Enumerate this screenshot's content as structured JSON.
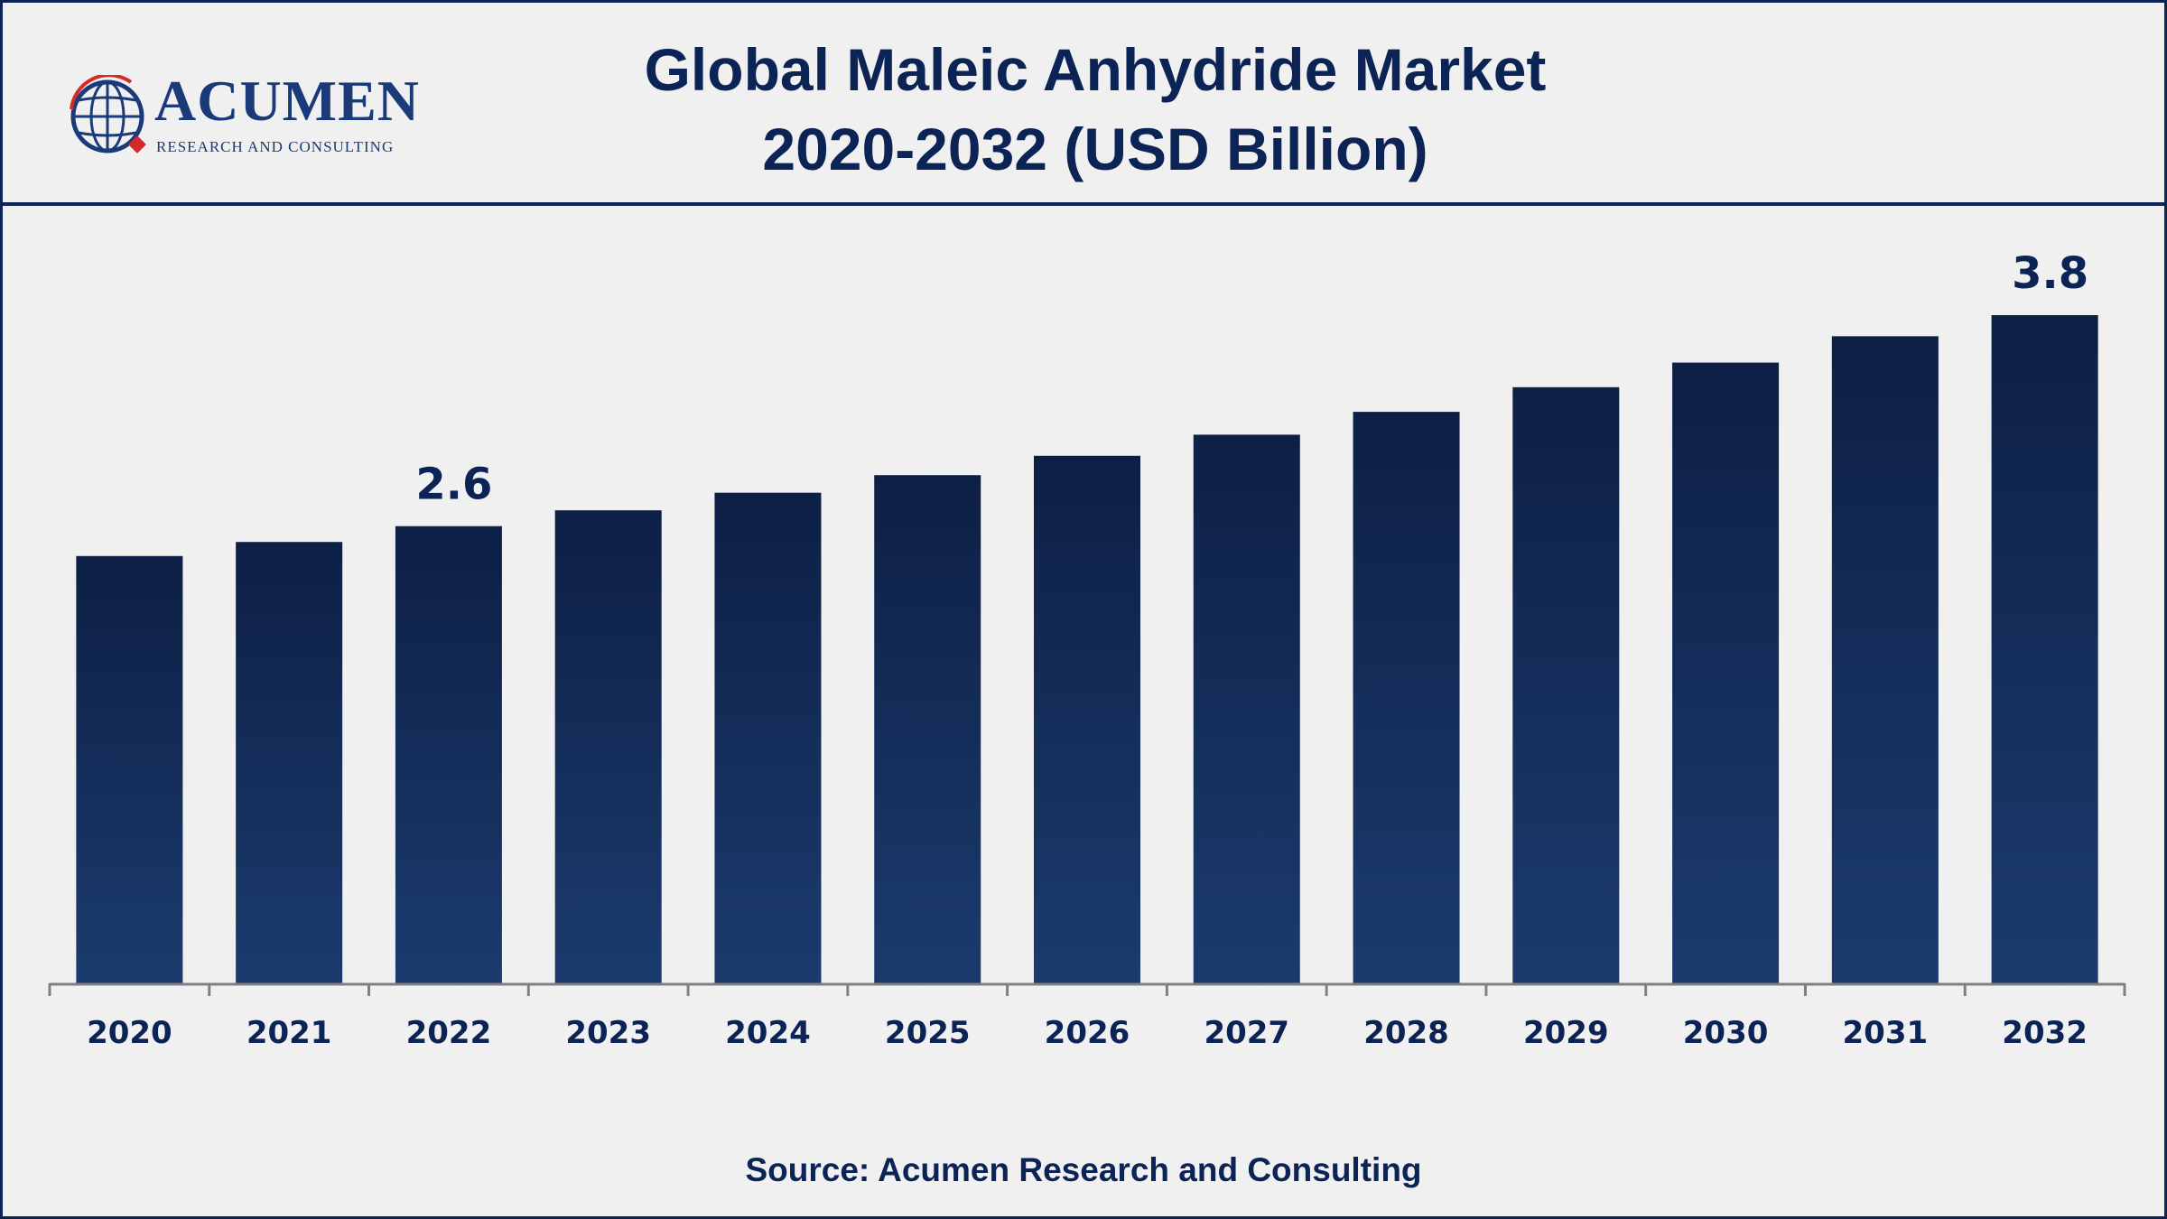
{
  "header": {
    "title_line1": "Global Maleic Anhydride Market",
    "title_line2": "2020-2032 (USD Billion)"
  },
  "logo": {
    "name": "ACUMEN",
    "tagline": "RESEARCH AND CONSULTING",
    "icon": "globe-icon"
  },
  "source": "Source: Acumen Research and Consulting",
  "colors": {
    "primary": "#0c2356",
    "bar_top": "#0d1f45",
    "bar_bottom": "#1b3b6e",
    "background": "#f0f0f0",
    "logo_red": "#d42a2a"
  },
  "chart_data": {
    "type": "bar",
    "categories": [
      "2020",
      "2021",
      "2022",
      "2023",
      "2024",
      "2025",
      "2026",
      "2027",
      "2028",
      "2029",
      "2030",
      "2031",
      "2032"
    ],
    "values": [
      2.43,
      2.51,
      2.6,
      2.69,
      2.79,
      2.89,
      3.0,
      3.12,
      3.25,
      3.39,
      3.53,
      3.68,
      3.8
    ],
    "data_labels": [
      {
        "index": 2,
        "text": "2.6"
      },
      {
        "index": 12,
        "text": "3.8"
      }
    ],
    "title": "Global Maleic Anhydride Market 2020-2032 (USD Billion)",
    "xlabel": "",
    "ylabel": "",
    "ylim": [
      0,
      4.2
    ],
    "grid": false,
    "legend": "none"
  }
}
